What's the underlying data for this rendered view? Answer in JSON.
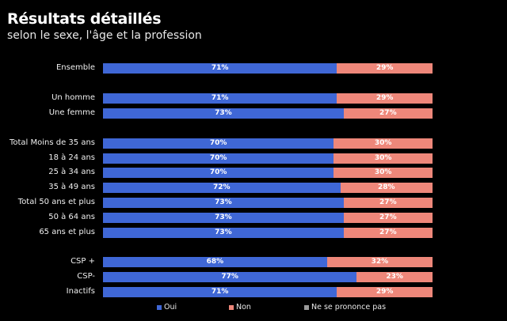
{
  "chart_data": {
    "type": "bar",
    "orientation": "horizontal-stacked-100",
    "title": "Résultats détaillés",
    "subtitle": "selon le sexe, l'âge et la profession",
    "xlabel": "",
    "ylabel": "",
    "xlim": [
      0,
      100
    ],
    "grid": false,
    "legend_position": "bottom",
    "categories": [
      "Ensemble",
      "Un homme",
      "Une femme",
      "Total Moins de 35 ans",
      "18 à 24 ans",
      "25 à 34 ans",
      "35 à 49 ans",
      "Total 50 ans et plus",
      "50 à 64 ans",
      "65 ans et plus",
      "CSP +",
      "CSP-",
      "Inactifs"
    ],
    "groups": [
      [
        0
      ],
      [
        1,
        2
      ],
      [
        3,
        4,
        5,
        6,
        7,
        8,
        9
      ],
      [
        10,
        11,
        12
      ]
    ],
    "series": [
      {
        "name": "Oui",
        "color": "#3F67D6",
        "values": [
          71,
          71,
          73,
          70,
          70,
          70,
          72,
          73,
          73,
          73,
          68,
          77,
          71
        ]
      },
      {
        "name": "Non",
        "color": "#EE877A",
        "values": [
          29,
          29,
          27,
          30,
          30,
          30,
          28,
          27,
          27,
          27,
          32,
          23,
          29
        ]
      },
      {
        "name": "Ne se prononce pas",
        "color": "#9A9A9A",
        "values": [
          0,
          0,
          0,
          0,
          0,
          0,
          0,
          0,
          0,
          0,
          0,
          0,
          0
        ]
      }
    ],
    "value_suffix": "%"
  }
}
